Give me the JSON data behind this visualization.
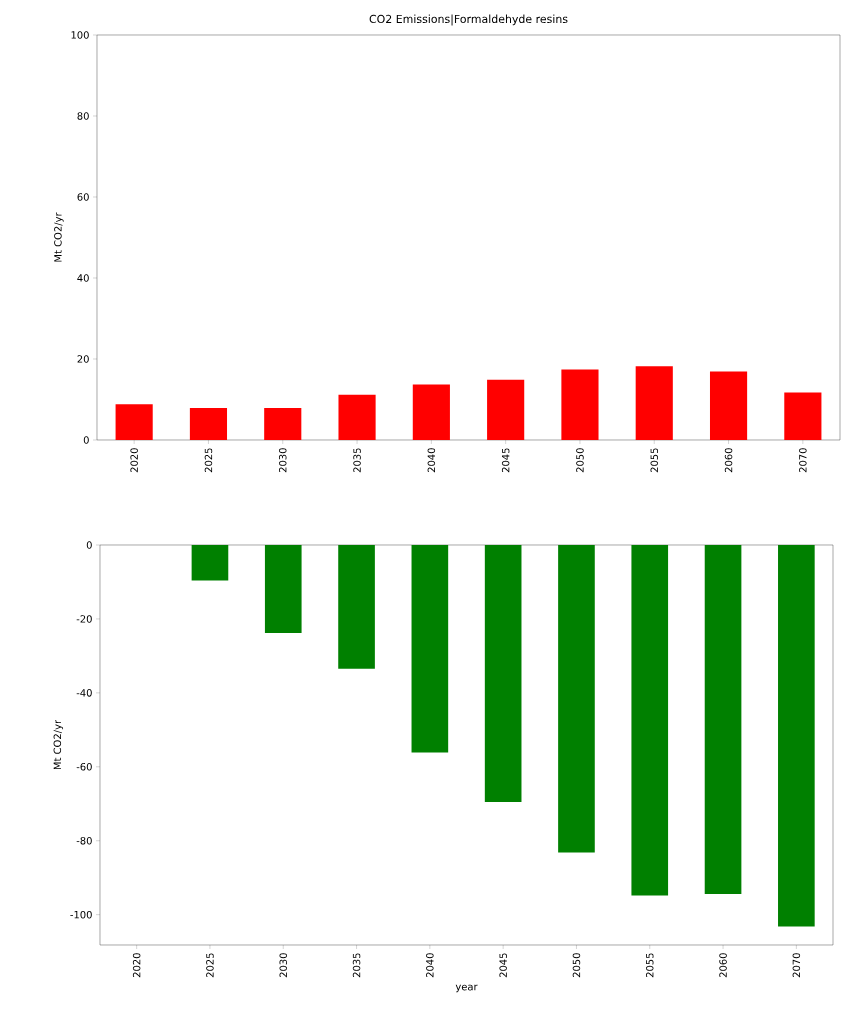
{
  "chart_data": [
    {
      "type": "bar",
      "title": "CO2 Emissions|Formaldehyde resins",
      "ylabel": "Mt CO2/yr",
      "categories": [
        "2020",
        "2025",
        "2030",
        "2035",
        "2040",
        "2045",
        "2050",
        "2055",
        "2060",
        "2070"
      ],
      "values": [
        8.8,
        7.9,
        7.9,
        11.2,
        13.7,
        14.9,
        17.4,
        18.2,
        16.9,
        11.7
      ],
      "color": "#ff0000",
      "ylim": [
        0,
        100
      ],
      "yticks": [
        0,
        20,
        40,
        60,
        80,
        100
      ]
    },
    {
      "type": "bar",
      "xlabel": "year",
      "ylabel": "Mt CO2/yr",
      "categories": [
        "2020",
        "2025",
        "2030",
        "2035",
        "2040",
        "2045",
        "2050",
        "2055",
        "2060",
        "2070"
      ],
      "values": [
        0,
        -9.6,
        -23.8,
        -33.5,
        -56.1,
        -69.5,
        -83.2,
        -94.8,
        -94.4,
        -103.2
      ],
      "color": "#008000",
      "ylim": [
        -108.2,
        0
      ],
      "yticks": [
        0,
        -20,
        -40,
        -60,
        -80,
        -100
      ]
    }
  ]
}
